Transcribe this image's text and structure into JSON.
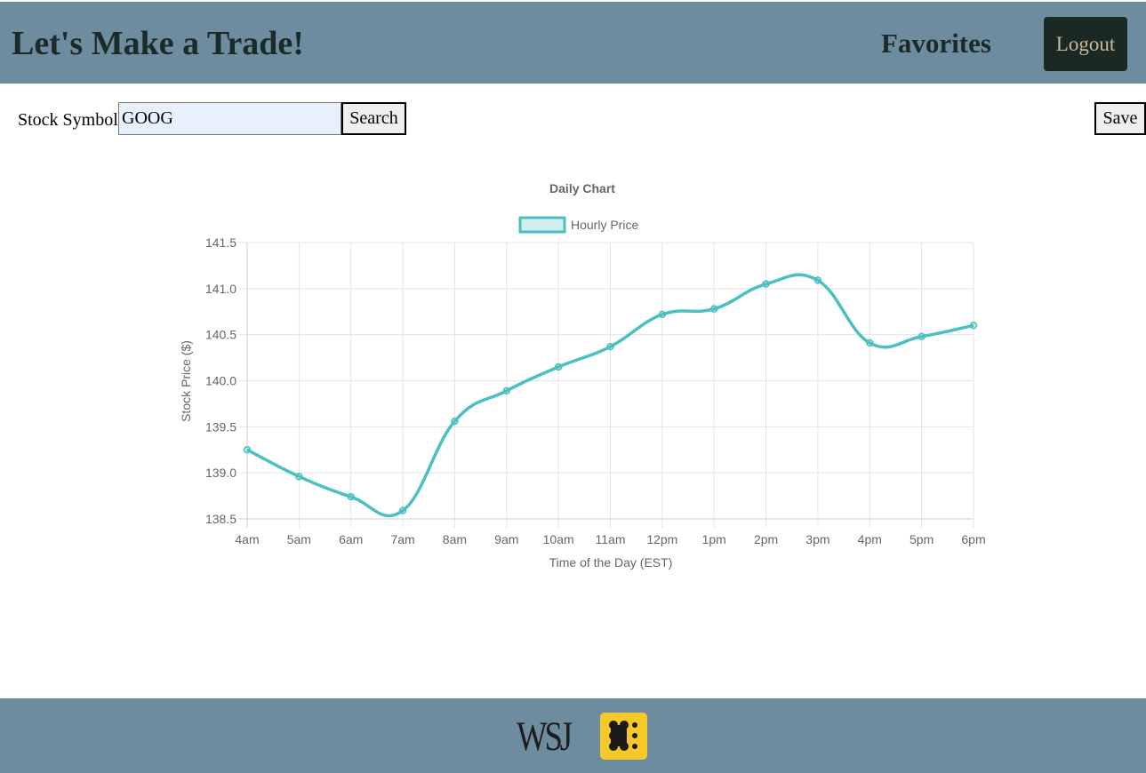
{
  "header": {
    "title": "Let's Make a Trade!",
    "favorites_label": "Favorites",
    "logout_label": "Logout"
  },
  "search": {
    "label": "Stock Symbol",
    "value": "GOOG",
    "button_label": "Search"
  },
  "toolbar": {
    "save_label": "Save"
  },
  "footer": {
    "logo_text": "WSJ",
    "brand_icon": "yellow-dots-logo-icon"
  },
  "colors": {
    "header_bg": "#6e8ca0",
    "line": "#4bc0c0",
    "logout_bg": "#1b2925"
  },
  "chart_data": {
    "type": "line",
    "title": "Daily Chart",
    "xlabel": "Time of the Day (EST)",
    "ylabel": "Stock Price ($)",
    "categories": [
      "4am",
      "5am",
      "6am",
      "7am",
      "8am",
      "9am",
      "10am",
      "11am",
      "12pm",
      "1pm",
      "2pm",
      "3pm",
      "4pm",
      "5pm",
      "6pm"
    ],
    "series": [
      {
        "name": "Hourly Price",
        "values": [
          139.25,
          138.96,
          138.74,
          138.59,
          139.56,
          139.89,
          140.15,
          140.37,
          140.72,
          140.78,
          141.05,
          141.09,
          140.41,
          140.48,
          140.6
        ]
      }
    ],
    "ylim": [
      138.5,
      141.5
    ],
    "yticks": [
      "141.5",
      "141.0",
      "140.5",
      "140.0",
      "139.5",
      "139.0",
      "138.5"
    ],
    "grid": true,
    "legend": "top"
  }
}
